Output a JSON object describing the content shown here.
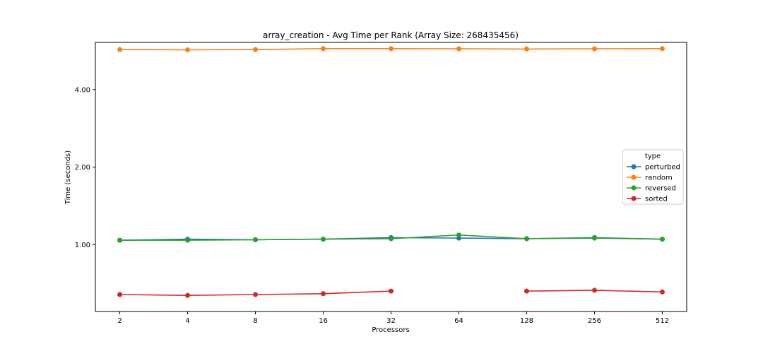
{
  "chart_data": {
    "type": "line",
    "title": "array_creation - Avg Time per Rank (Array Size: 268435456)",
    "xlabel": "Processors",
    "ylabel": "Time (seconds)",
    "x_scale": "log2",
    "y_scale": "log",
    "categories": [
      "2",
      "4",
      "8",
      "16",
      "32",
      "64",
      "128",
      "256",
      "512"
    ],
    "x": [
      2,
      4,
      8,
      16,
      32,
      64,
      128,
      256,
      512
    ],
    "y_ticks": [
      1.0,
      2.0,
      4.0
    ],
    "y_tick_labels": [
      "1.00",
      "2.00",
      "4.00"
    ],
    "ylim": [
      0.55,
      6.1
    ],
    "grid": false,
    "legend": {
      "title": "type",
      "placement": "center-right"
    },
    "series": [
      {
        "name": "perturbed",
        "color": "#1f77b4",
        "values": [
          1.04,
          1.05,
          1.045,
          1.05,
          1.065,
          1.06,
          1.055,
          1.065,
          1.05
        ]
      },
      {
        "name": "random",
        "color": "#ff7f0e",
        "values": [
          5.72,
          5.71,
          5.72,
          5.77,
          5.77,
          5.76,
          5.75,
          5.76,
          5.77
        ]
      },
      {
        "name": "reversed",
        "color": "#2ca02c",
        "values": [
          1.04,
          1.04,
          1.045,
          1.05,
          1.055,
          1.09,
          1.055,
          1.06,
          1.05
        ]
      },
      {
        "name": "sorted",
        "color": "#d62728",
        "values": [
          0.64,
          0.635,
          0.64,
          0.645,
          0.66,
          null,
          0.66,
          0.665,
          0.655
        ]
      }
    ]
  }
}
